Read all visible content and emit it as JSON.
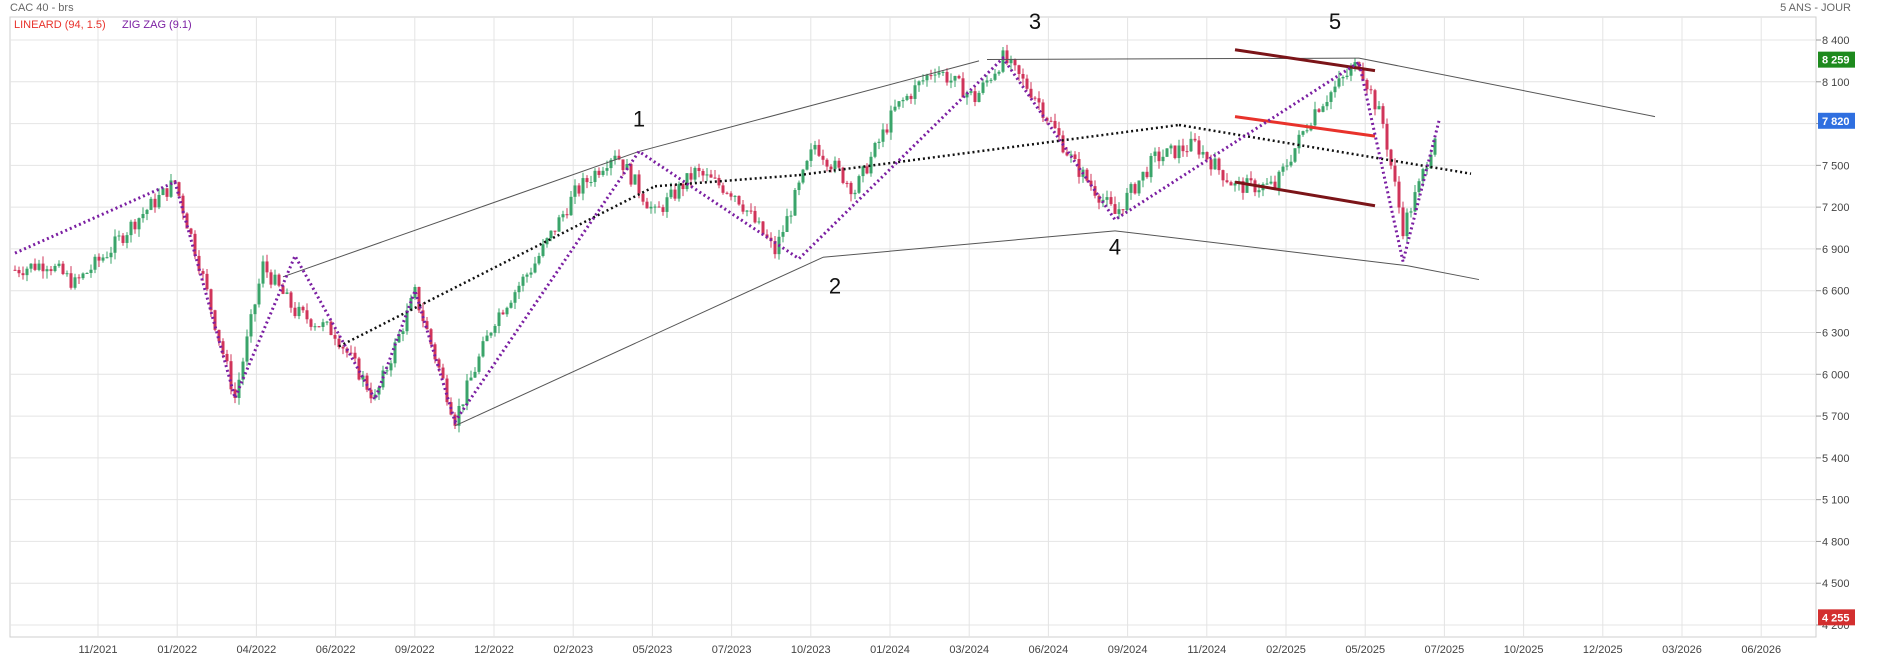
{
  "header": {
    "title": "CAC 40 - brs",
    "period": "5 ANS - JOUR"
  },
  "indicators": [
    {
      "label": "LINEARD (94, 1.5)",
      "color": "#e8322b"
    },
    {
      "label": "ZIG ZAG (9.1)",
      "color": "#7b1fa2"
    }
  ],
  "chart_data": {
    "type": "candlestick",
    "y_axis": {
      "ticks": [
        "8 400",
        "8 100",
        "7 800",
        "7 500",
        "7 200",
        "6 900",
        "6 600",
        "6 300",
        "6 000",
        "5 700",
        "5 400",
        "5 100",
        "4 800",
        "4 500",
        "4 200"
      ],
      "ylim": [
        4200,
        8560
      ],
      "position": "right"
    },
    "x_axis": {
      "ticks": [
        "11/2021",
        "01/2022",
        "04/2022",
        "06/2022",
        "09/2022",
        "12/2022",
        "02/2023",
        "05/2023",
        "07/2023",
        "10/2023",
        "01/2024",
        "03/2024",
        "06/2024",
        "09/2024",
        "11/2024",
        "02/2025",
        "05/2025",
        "07/2025",
        "10/2025",
        "12/2025",
        "03/2026",
        "06/2026"
      ]
    },
    "grid": true,
    "price_badges": [
      {
        "value": 8259,
        "label": "8 259",
        "color": "#1e8a1e"
      },
      {
        "value": 7820,
        "label": "7 820",
        "color": "#2f6fe0"
      },
      {
        "value": 4255,
        "label": "4 255",
        "color": "#d32f2f"
      }
    ],
    "price_path": [
      [
        0,
        6750
      ],
      [
        0.8,
        6800
      ],
      [
        1.5,
        6650
      ],
      [
        2.4,
        6900
      ],
      [
        3,
        7100
      ],
      [
        4,
        7380
      ],
      [
        4.6,
        6800
      ],
      [
        5.5,
        5830
      ],
      [
        6.2,
        6780
      ],
      [
        7,
        6450
      ],
      [
        8,
        6300
      ],
      [
        9,
        5820
      ],
      [
        10,
        6580
      ],
      [
        11,
        5680
      ],
      [
        12,
        6400
      ],
      [
        13,
        6800
      ],
      [
        14,
        7300
      ],
      [
        15,
        7600
      ],
      [
        16,
        7150
      ],
      [
        17,
        7450
      ],
      [
        18,
        7300
      ],
      [
        19,
        6880
      ],
      [
        20,
        7650
      ],
      [
        21,
        7320
      ],
      [
        22,
        7900
      ],
      [
        23,
        8200
      ],
      [
        24,
        7980
      ],
      [
        24.7,
        8270
      ],
      [
        25.5,
        8000
      ],
      [
        26.5,
        7500
      ],
      [
        27.5,
        7150
      ],
      [
        28.5,
        7550
      ],
      [
        29.5,
        7650
      ],
      [
        30.5,
        7350
      ],
      [
        31.5,
        7350
      ],
      [
        32.5,
        7900
      ],
      [
        33.6,
        8240
      ],
      [
        34.2,
        7800
      ],
      [
        34.7,
        7050
      ],
      [
        35.1,
        7350
      ],
      [
        35.6,
        7820
      ]
    ],
    "zigzag": [
      [
        0,
        6870
      ],
      [
        4,
        7380
      ],
      [
        5.5,
        5830
      ],
      [
        7,
        6850
      ],
      [
        9,
        5820
      ],
      [
        10,
        6600
      ],
      [
        11,
        5660
      ],
      [
        15.6,
        7600
      ],
      [
        19.6,
        6830
      ],
      [
        24.7,
        8270
      ],
      [
        27.5,
        7110
      ],
      [
        33.6,
        8240
      ],
      [
        34.7,
        6810
      ],
      [
        35.6,
        7820
      ]
    ],
    "wave_labels": [
      {
        "label": "1",
        "x": 15.6,
        "y": 7780
      },
      {
        "label": "2",
        "x": 20.5,
        "y": 6580
      },
      {
        "label": "3",
        "x": 25.5,
        "y": 8480
      },
      {
        "label": "4",
        "x": 27.5,
        "y": 6860
      },
      {
        "label": "5",
        "x": 33.0,
        "y": 8480
      }
    ]
  }
}
